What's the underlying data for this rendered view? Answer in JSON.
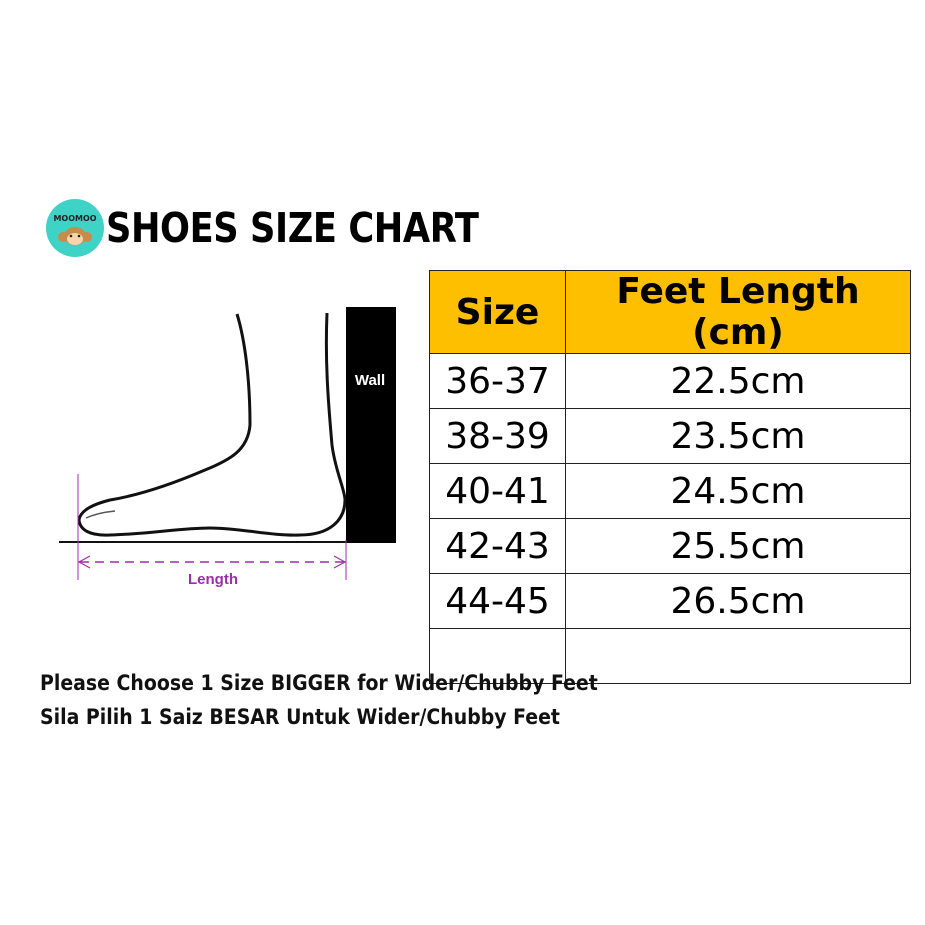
{
  "logo": {
    "text": "MOOMOO",
    "color": "#3fd3c8"
  },
  "title": "SHOES SIZE CHART",
  "diagram": {
    "wall_label": "Wall",
    "length_label": "Length",
    "accent_color": "#9b2fa6"
  },
  "table": {
    "header_color": "#fdbf00",
    "headers": [
      "Size",
      "Feet Length (cm)"
    ],
    "rows": [
      {
        "size": "36-37",
        "length": "22.5cm"
      },
      {
        "size": "38-39",
        "length": "23.5cm"
      },
      {
        "size": "40-41",
        "length": "24.5cm"
      },
      {
        "size": "42-43",
        "length": "25.5cm"
      },
      {
        "size": "44-45",
        "length": "26.5cm"
      },
      {
        "size": "",
        "length": ""
      }
    ]
  },
  "notes": [
    "Please Choose 1 Size BIGGER for Wider/Chubby Feet",
    "Sila Pilih 1 Saiz BESAR Untuk Wider/Chubby Feet"
  ]
}
